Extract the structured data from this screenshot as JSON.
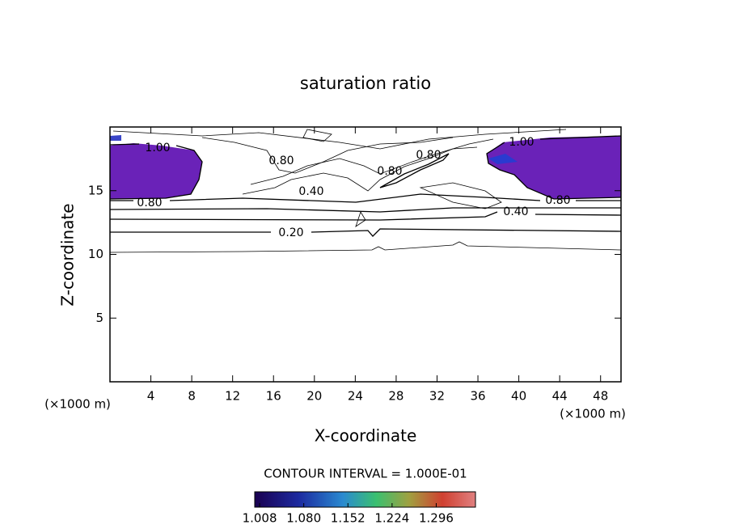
{
  "chart_data": {
    "type": "contour",
    "title": "saturation ratio",
    "xlabel": "X-coordinate",
    "ylabel": "Z-coordinate",
    "xunit": "(×1000 m)",
    "yunit": "(×1000 m)",
    "xlim": [
      0,
      50
    ],
    "ylim": [
      0,
      20
    ],
    "xticks": [
      4,
      8,
      12,
      16,
      20,
      24,
      28,
      32,
      36,
      40,
      44,
      48
    ],
    "yticks": [
      5,
      10,
      15
    ],
    "contour_interval_text": "CONTOUR INTERVAL = 1.000E-01",
    "contour_levels": [
      0.1,
      0.2,
      0.4,
      0.6,
      0.8,
      1.0
    ],
    "contour_labels": [
      {
        "value": 1.0,
        "label": "1.00"
      },
      {
        "value": 0.8,
        "label": "0.80"
      },
      {
        "value": 0.8,
        "label": "0.80"
      },
      {
        "value": 0.4,
        "label": "0.40"
      },
      {
        "value": 0.2,
        "label": "0.20"
      },
      {
        "value": 0.8,
        "label": "0.80"
      },
      {
        "value": 0.8,
        "label": "0.80"
      },
      {
        "value": 0.4,
        "label": "0.40"
      },
      {
        "value": 0.8,
        "label": "0.80"
      },
      {
        "value": 1.0,
        "label": "1.00"
      }
    ],
    "fill_color": "#6a22b8",
    "colorbar": {
      "range": [
        1.0,
        1.36
      ],
      "ticks": [
        1.008,
        {
          "value": 1.08,
          "label": "1.080"
        },
        1.152,
        1.224,
        1.296
      ]
    }
  }
}
